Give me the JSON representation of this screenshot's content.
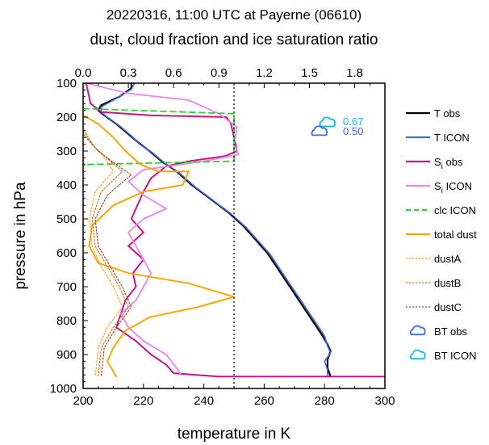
{
  "chart_data": {
    "type": "line",
    "title": "20220316, 11:00 UTC at Payerne (06610)",
    "subtitle": "dust, cloud fraction and ice saturation ratio",
    "xlabel": "temperature in K",
    "ylabel": "pressure in hPa",
    "xlim": [
      200,
      300
    ],
    "ylim": [
      1000,
      100
    ],
    "x_ticks": [
      "200",
      "220",
      "240",
      "260",
      "280",
      "300"
    ],
    "y_ticks": [
      "100",
      "200",
      "300",
      "400",
      "500",
      "600",
      "700",
      "800",
      "900",
      "1000"
    ],
    "top_axis": {
      "lim": [
        0.0,
        2.0
      ],
      "ticks": [
        "0.0",
        "0.3",
        "0.6",
        "0.9",
        "1.2",
        "1.5",
        "1.8"
      ]
    },
    "reference_line": {
      "top_axis_value": 1.0,
      "style": "dotted",
      "color": "#000000"
    },
    "bt": {
      "obs": "0.50",
      "icon": "0.67",
      "obs_color": "#4169e1",
      "icon_color": "#1fb4e6"
    },
    "legend": [
      {
        "label": "T obs",
        "color": "#000000",
        "style": "solid"
      },
      {
        "label": "T ICON",
        "color": "#4169e1",
        "style": "solid"
      },
      {
        "label": "S",
        "sub": "i",
        "suffix": " obs",
        "color": "#c71585",
        "style": "solid"
      },
      {
        "label": "S",
        "sub": "i",
        "suffix": " ICON",
        "color": "#ee82ee",
        "style": "solid"
      },
      {
        "label": "clc ICON",
        "color": "#32cd32",
        "style": "dashed"
      },
      {
        "label": "total dust",
        "color": "#ffa500",
        "style": "solid"
      },
      {
        "label": "dustA",
        "color": "#ffa500",
        "style": "dotted"
      },
      {
        "label": "dustB",
        "color": "#d2691e",
        "style": "dotted"
      },
      {
        "label": "dustC",
        "color": "#8b4513",
        "style": "dotted"
      },
      {
        "label": "BT obs",
        "color": "#4169e1",
        "style": "cloud"
      },
      {
        "label": "BT ICON",
        "color": "#1fb4e6",
        "style": "cloud"
      }
    ],
    "series": [
      {
        "name": "T obs",
        "axis": "bottom",
        "color": "#000000",
        "width": 2.2,
        "points": [
          [
            216,
            100
          ],
          [
            216,
            115
          ],
          [
            212,
            140
          ],
          [
            206,
            165
          ],
          [
            205,
            180
          ],
          [
            207,
            195
          ],
          [
            211,
            220
          ],
          [
            215,
            250
          ],
          [
            219,
            280
          ],
          [
            222,
            300
          ],
          [
            226,
            330
          ],
          [
            231,
            360
          ],
          [
            236,
            400
          ],
          [
            242,
            440
          ],
          [
            248,
            480
          ],
          [
            253,
            520
          ],
          [
            257,
            560
          ],
          [
            261,
            600
          ],
          [
            264,
            640
          ],
          [
            267,
            680
          ],
          [
            270,
            720
          ],
          [
            273,
            760
          ],
          [
            276,
            800
          ],
          [
            279,
            840
          ],
          [
            281,
            870
          ],
          [
            282,
            890
          ],
          [
            281,
            915
          ],
          [
            281,
            940
          ],
          [
            282,
            965
          ]
        ]
      },
      {
        "name": "T ICON",
        "axis": "bottom",
        "color": "#4169e1",
        "width": 1.6,
        "points": [
          [
            217,
            100
          ],
          [
            216,
            118
          ],
          [
            211,
            145
          ],
          [
            206,
            170
          ],
          [
            206,
            185
          ],
          [
            208,
            200
          ],
          [
            212,
            225
          ],
          [
            216,
            255
          ],
          [
            219,
            282
          ],
          [
            223,
            305
          ],
          [
            227,
            335
          ],
          [
            232,
            365
          ],
          [
            237,
            405
          ],
          [
            243,
            445
          ],
          [
            249,
            485
          ],
          [
            254,
            525
          ],
          [
            258,
            565
          ],
          [
            262,
            605
          ],
          [
            265,
            645
          ],
          [
            268,
            685
          ],
          [
            271,
            725
          ],
          [
            274,
            765
          ],
          [
            277,
            805
          ],
          [
            280,
            845
          ],
          [
            281,
            875
          ],
          [
            282,
            895
          ],
          [
            280,
            920
          ],
          [
            281,
            945
          ],
          [
            281,
            962
          ]
        ]
      },
      {
        "name": "Si obs",
        "axis": "top",
        "color": "#c71585",
        "width": 2.0,
        "points": [
          [
            0.02,
            100
          ],
          [
            0.05,
            160
          ],
          [
            0.12,
            185
          ],
          [
            0.45,
            195
          ],
          [
            0.95,
            200
          ],
          [
            0.98,
            220
          ],
          [
            1.0,
            260
          ],
          [
            1.02,
            300
          ],
          [
            0.94,
            315
          ],
          [
            0.7,
            330
          ],
          [
            0.55,
            345
          ],
          [
            0.45,
            380
          ],
          [
            0.4,
            420
          ],
          [
            0.36,
            460
          ],
          [
            0.32,
            500
          ],
          [
            0.4,
            540
          ],
          [
            0.3,
            580
          ],
          [
            0.4,
            620
          ],
          [
            0.33,
            660
          ],
          [
            0.35,
            700
          ],
          [
            0.28,
            740
          ],
          [
            0.25,
            780
          ],
          [
            0.22,
            820
          ],
          [
            0.35,
            860
          ],
          [
            0.45,
            900
          ],
          [
            0.55,
            930
          ],
          [
            0.6,
            955
          ],
          [
            0.9,
            965
          ],
          [
            2.0,
            965
          ]
        ]
      },
      {
        "name": "Si ICON",
        "axis": "top",
        "color": "#ee82ee",
        "width": 1.8,
        "points": [
          [
            0.02,
            100
          ],
          [
            0.3,
            130
          ],
          [
            0.7,
            150
          ],
          [
            0.9,
            190
          ],
          [
            1.02,
            230
          ],
          [
            1.0,
            280
          ],
          [
            1.03,
            310
          ],
          [
            0.8,
            330
          ],
          [
            0.4,
            355
          ],
          [
            0.3,
            390
          ],
          [
            0.4,
            430
          ],
          [
            0.55,
            470
          ],
          [
            0.4,
            500
          ],
          [
            0.3,
            540
          ],
          [
            0.35,
            580
          ],
          [
            0.4,
            620
          ],
          [
            0.45,
            660
          ],
          [
            0.4,
            700
          ],
          [
            0.35,
            740
          ],
          [
            0.25,
            780
          ],
          [
            0.3,
            820
          ],
          [
            0.4,
            860
          ],
          [
            0.55,
            900
          ],
          [
            0.62,
            940
          ],
          [
            0.65,
            960
          ]
        ]
      },
      {
        "name": "clc ICON",
        "axis": "top",
        "color": "#32cd32",
        "width": 1.8,
        "dash": "7,5",
        "points": [
          [
            0.0,
            175
          ],
          [
            1.0,
            190
          ],
          [
            1.0,
            330
          ],
          [
            0.0,
            340
          ]
        ]
      },
      {
        "name": "total dust",
        "axis": "bottom",
        "color": "#ffa500",
        "width": 2.0,
        "points": [
          [
            200,
            195
          ],
          [
            205,
            220
          ],
          [
            210,
            260
          ],
          [
            214,
            300
          ],
          [
            219,
            340
          ],
          [
            225,
            360
          ],
          [
            235,
            360
          ],
          [
            233,
            400
          ],
          [
            220,
            420
          ],
          [
            210,
            460
          ],
          [
            203,
            520
          ],
          [
            202,
            580
          ],
          [
            205,
            630
          ],
          [
            215,
            660
          ],
          [
            235,
            690
          ],
          [
            250,
            730
          ],
          [
            238,
            760
          ],
          [
            222,
            790
          ],
          [
            214,
            830
          ],
          [
            210,
            880
          ],
          [
            208,
            920
          ],
          [
            210,
            950
          ],
          [
            211,
            965
          ]
        ]
      },
      {
        "name": "dustA",
        "axis": "bottom",
        "color": "#ffa500",
        "width": 1.1,
        "dash": "2,2",
        "points": [
          [
            200,
            230
          ],
          [
            203,
            280
          ],
          [
            207,
            320
          ],
          [
            210,
            360
          ],
          [
            204,
            420
          ],
          [
            202,
            500
          ],
          [
            203,
            580
          ],
          [
            206,
            640
          ],
          [
            210,
            700
          ],
          [
            213,
            760
          ],
          [
            208,
            820
          ],
          [
            205,
            880
          ],
          [
            204,
            965
          ]
        ]
      },
      {
        "name": "dustB",
        "axis": "bottom",
        "color": "#d2691e",
        "width": 1.1,
        "dash": "2,2",
        "points": [
          [
            200,
            240
          ],
          [
            204,
            290
          ],
          [
            209,
            330
          ],
          [
            213,
            360
          ],
          [
            206,
            420
          ],
          [
            203,
            500
          ],
          [
            204,
            580
          ],
          [
            208,
            640
          ],
          [
            212,
            700
          ],
          [
            215,
            760
          ],
          [
            210,
            820
          ],
          [
            206,
            880
          ],
          [
            205,
            965
          ]
        ]
      },
      {
        "name": "dustC",
        "axis": "bottom",
        "color": "#8b4513",
        "width": 1.1,
        "dash": "2,2",
        "points": [
          [
            200,
            250
          ],
          [
            205,
            300
          ],
          [
            211,
            340
          ],
          [
            216,
            370
          ],
          [
            208,
            430
          ],
          [
            204,
            500
          ],
          [
            205,
            580
          ],
          [
            209,
            640
          ],
          [
            213,
            700
          ],
          [
            216,
            760
          ],
          [
            211,
            820
          ],
          [
            207,
            880
          ],
          [
            206,
            965
          ]
        ]
      }
    ]
  }
}
